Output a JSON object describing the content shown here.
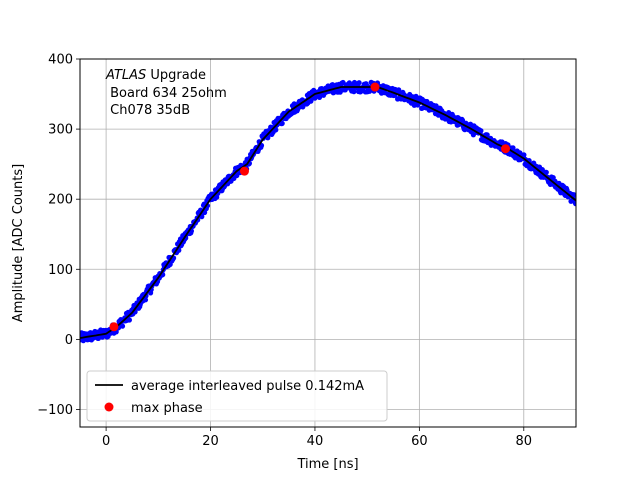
{
  "chart_data": {
    "type": "scatter",
    "title": "",
    "xlabel": "Time [ns]",
    "ylabel": "Amplitude [ADC Counts]",
    "xlim": [
      -5,
      90
    ],
    "ylim": [
      -125,
      400
    ],
    "xticks": [
      0,
      20,
      40,
      60,
      80
    ],
    "yticks": [
      -100,
      0,
      100,
      200,
      300,
      400
    ],
    "xtick_labels": [
      "0",
      "20",
      "40",
      "60",
      "80"
    ],
    "ytick_labels": [
      "−100",
      "0",
      "100",
      "200",
      "300",
      "400"
    ],
    "grid": true,
    "annotation": {
      "line1_italic": "ATLAS",
      "line1_rest": " Upgrade",
      "line2": " Board 634 25ohm",
      "line3": " Ch078 35dB"
    },
    "legend": {
      "placement": "lower-left",
      "entries": [
        {
          "label": "average interleaved pulse 0.142mA",
          "marker": "line",
          "color": "#000000"
        },
        {
          "label": "max phase",
          "marker": "dot",
          "color": "#ff0000"
        }
      ]
    },
    "series": [
      {
        "name": "average interleaved pulse 0.142mA",
        "kind": "line",
        "color": "#000000",
        "x": [
          -5,
          0,
          2,
          5,
          10,
          15,
          20,
          25,
          27,
          30,
          35,
          40,
          45,
          50,
          52,
          55,
          60,
          65,
          70,
          75,
          77,
          80,
          85,
          90
        ],
        "y": [
          2,
          8,
          18,
          38,
          88,
          145,
          200,
          240,
          250,
          285,
          325,
          350,
          360,
          360,
          360,
          352,
          338,
          320,
          300,
          278,
          272,
          258,
          228,
          198
        ]
      },
      {
        "name": "",
        "kind": "scatter",
        "color": "#0000ff",
        "note_scatter": "individual interleaved samples around average pulse",
        "x": [],
        "y": []
      },
      {
        "name": "max phase",
        "kind": "points",
        "color": "#ff0000",
        "x": [
          1.5,
          26.5,
          51.5,
          76.5
        ],
        "y": [
          18,
          240,
          360,
          272
        ]
      }
    ]
  }
}
